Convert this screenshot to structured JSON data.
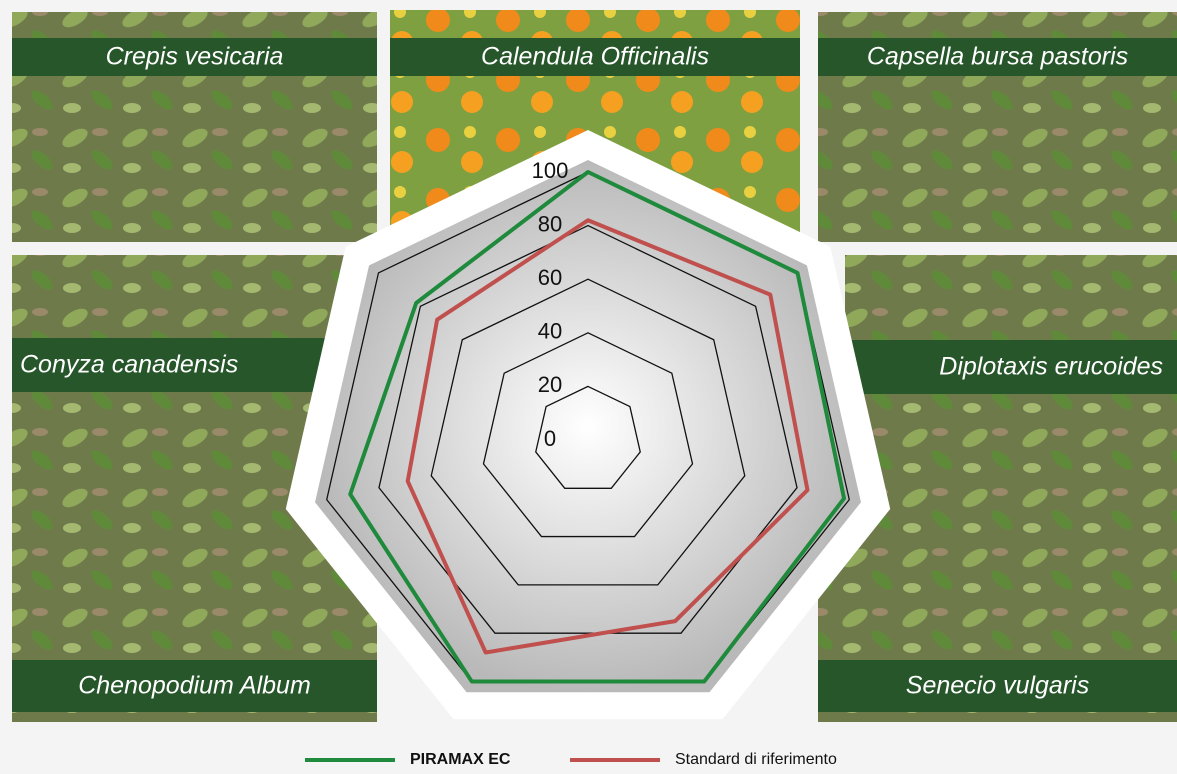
{
  "chart_data": {
    "type": "radar",
    "categories": [
      "Calendula Officinalis",
      "Capsella bursa pastoris",
      "Diplotaxis erucoides",
      "Senecio vulgaris",
      "Chenopodium Album",
      "Conyza canadensis",
      "Crepis vesicaria"
    ],
    "series": [
      {
        "name": "PIRAMAX EC",
        "color": "#1f8a3c",
        "values": [
          100,
          100,
          98,
          100,
          100,
          91,
          82
        ]
      },
      {
        "name": "Standard di riferimento",
        "color": "#c0504d",
        "values": [
          82,
          87,
          84,
          75,
          88,
          69,
          72
        ]
      }
    ],
    "ylim": [
      0,
      100
    ],
    "yticks": [
      0,
      20,
      40,
      60,
      80,
      100
    ],
    "grid": true
  }
}
